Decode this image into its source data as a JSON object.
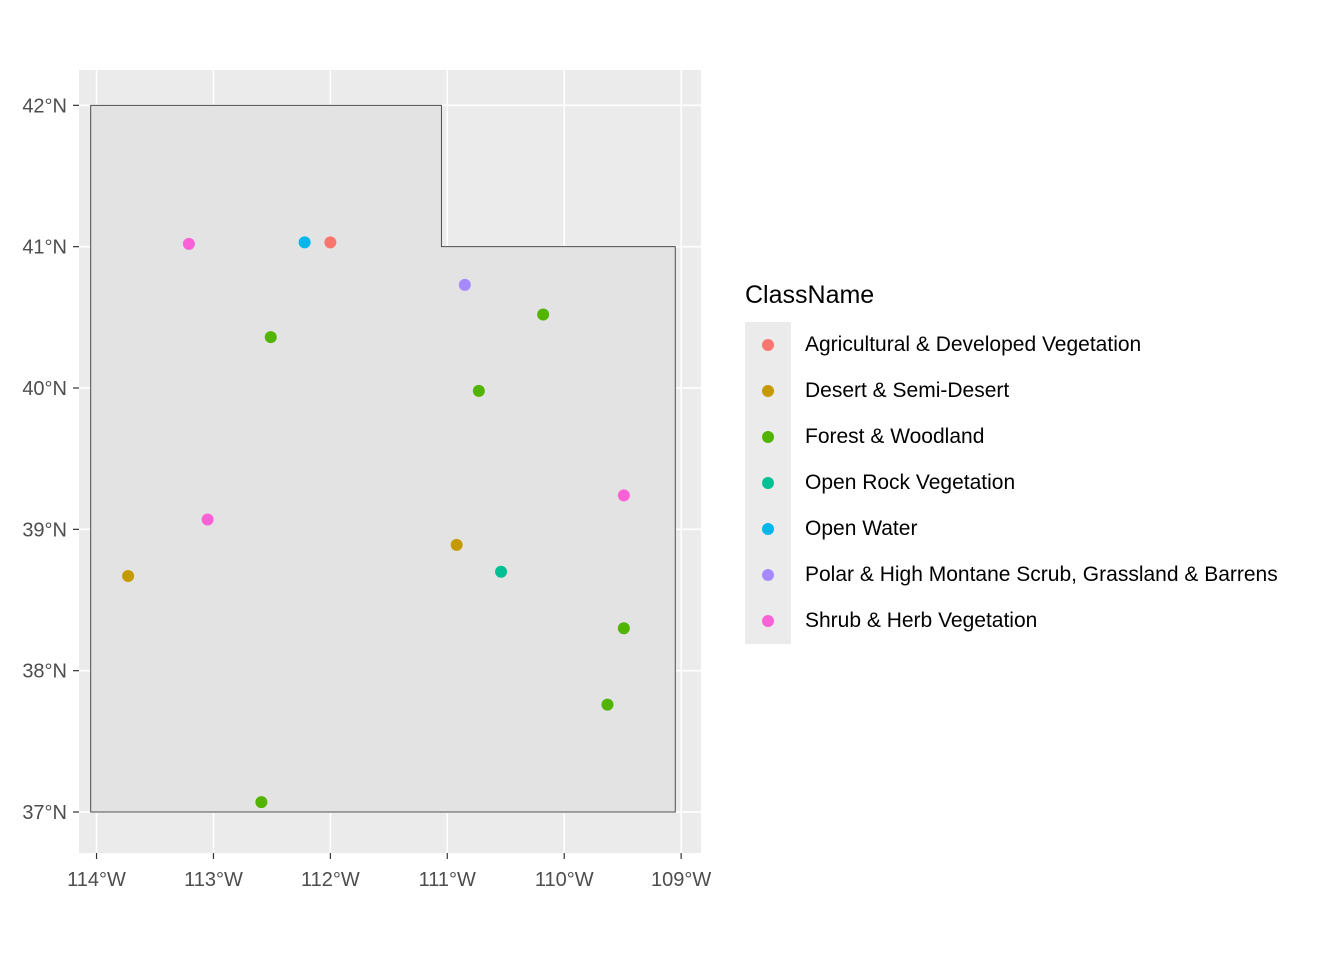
{
  "chart_data": {
    "type": "scatter",
    "title": "",
    "xlabel": "",
    "ylabel": "",
    "xlim": [
      -114.15,
      -108.83
    ],
    "ylim": [
      36.71,
      42.25
    ],
    "x_ticks": [
      -114,
      -113,
      -112,
      -111,
      -110,
      -109
    ],
    "x_tick_labels": [
      "114°W",
      "113°W",
      "112°W",
      "111°W",
      "110°W",
      "109°W"
    ],
    "y_ticks": [
      37,
      38,
      39,
      40,
      41,
      42
    ],
    "y_tick_labels": [
      "37°N",
      "38°N",
      "39°N",
      "40°N",
      "41°N",
      "42°N"
    ],
    "grid": true,
    "legend_position": "right",
    "legend_title": "ClassName",
    "classes": [
      {
        "name": "Agricultural & Developed Vegetation",
        "color": "#F8766D"
      },
      {
        "name": "Desert & Semi-Desert",
        "color": "#C49A00"
      },
      {
        "name": "Forest & Woodland",
        "color": "#53B400"
      },
      {
        "name": "Open Rock Vegetation",
        "color": "#00C094"
      },
      {
        "name": "Open Water",
        "color": "#00B6EB"
      },
      {
        "name": "Polar & High Montane Scrub, Grassland & Barrens",
        "color": "#A58AFF"
      },
      {
        "name": "Shrub & Herb Vegetation",
        "color": "#FB61D7"
      }
    ],
    "boundary_name": "Utah",
    "boundary": [
      [
        -114.05,
        42.0
      ],
      [
        -111.05,
        42.0
      ],
      [
        -111.05,
        41.0
      ],
      [
        -109.05,
        41.0
      ],
      [
        -109.05,
        37.0
      ],
      [
        -114.05,
        37.0
      ]
    ],
    "points": [
      {
        "lon": -112.0,
        "lat": 41.03,
        "class": "Agricultural & Developed Vegetation"
      },
      {
        "lon": -113.73,
        "lat": 38.67,
        "class": "Desert & Semi-Desert"
      },
      {
        "lon": -110.92,
        "lat": 38.89,
        "class": "Desert & Semi-Desert"
      },
      {
        "lon": -112.51,
        "lat": 40.36,
        "class": "Forest & Woodland"
      },
      {
        "lon": -110.18,
        "lat": 40.52,
        "class": "Forest & Woodland"
      },
      {
        "lon": -110.73,
        "lat": 39.98,
        "class": "Forest & Woodland"
      },
      {
        "lon": -109.49,
        "lat": 38.3,
        "class": "Forest & Woodland"
      },
      {
        "lon": -109.63,
        "lat": 37.76,
        "class": "Forest & Woodland"
      },
      {
        "lon": -112.59,
        "lat": 37.07,
        "class": "Forest & Woodland"
      },
      {
        "lon": -110.54,
        "lat": 38.7,
        "class": "Open Rock Vegetation"
      },
      {
        "lon": -112.22,
        "lat": 41.03,
        "class": "Open Water"
      },
      {
        "lon": -110.85,
        "lat": 40.73,
        "class": "Polar & High Montane Scrub, Grassland & Barrens"
      },
      {
        "lon": -113.21,
        "lat": 41.02,
        "class": "Shrub & Herb Vegetation"
      },
      {
        "lon": -113.05,
        "lat": 39.07,
        "class": "Shrub & Herb Vegetation"
      },
      {
        "lon": -109.49,
        "lat": 39.24,
        "class": "Shrub & Herb Vegetation"
      }
    ]
  }
}
